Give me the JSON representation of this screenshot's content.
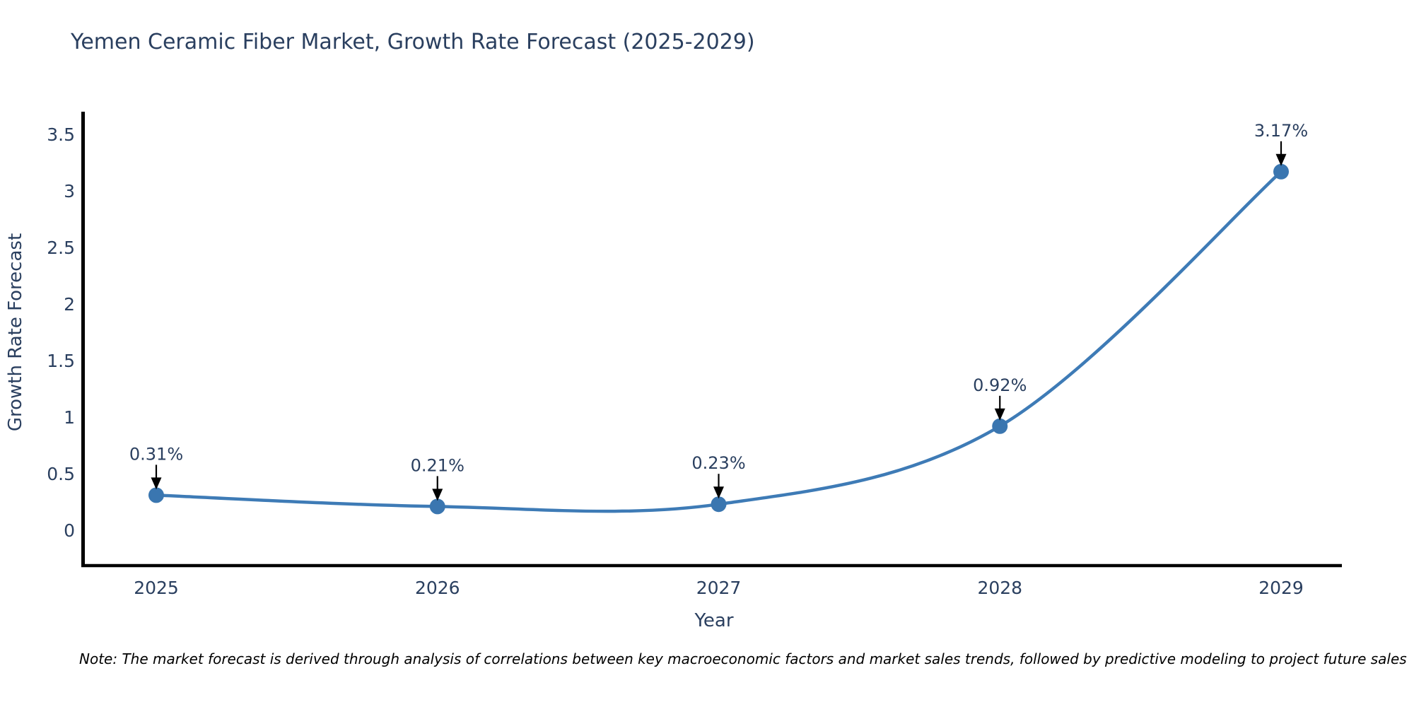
{
  "title": "Yemen Ceramic Fiber Market, Growth Rate Forecast (2025-2029)",
  "note": "Note: The market forecast is derived through analysis of correlations between key macroeconomic factors and market sales trends, followed by predictive modeling to project future sales",
  "chart_data": {
    "type": "line",
    "title": "Yemen Ceramic Fiber Market, Growth Rate Forecast (2025-2029)",
    "xlabel": "Year",
    "ylabel": "Growth Rate Forecast",
    "categories": [
      "2025",
      "2026",
      "2027",
      "2028",
      "2029"
    ],
    "series": [
      {
        "name": "Growth Rate Forecast",
        "values": [
          0.31,
          0.21,
          0.23,
          0.92,
          3.17
        ]
      }
    ],
    "data_labels": [
      "0.31%",
      "0.21%",
      "0.23%",
      "0.92%",
      "3.17%"
    ],
    "line_shape": "spline",
    "grid": false,
    "legend": "none",
    "ylim": [
      -0.31,
      3.7
    ],
    "ytick_values": [
      0,
      0.5,
      1,
      1.5,
      2,
      2.5,
      3,
      3.5
    ],
    "ytick_labels": [
      "0",
      "0.5",
      "1",
      "1.5",
      "2",
      "2.5",
      "3",
      "3.5"
    ],
    "colors": {
      "line": "#3e7bb6",
      "marker": "#3a76b0",
      "axis": "#000000",
      "arrow": "#000000",
      "text": "#2a3f5f"
    }
  }
}
